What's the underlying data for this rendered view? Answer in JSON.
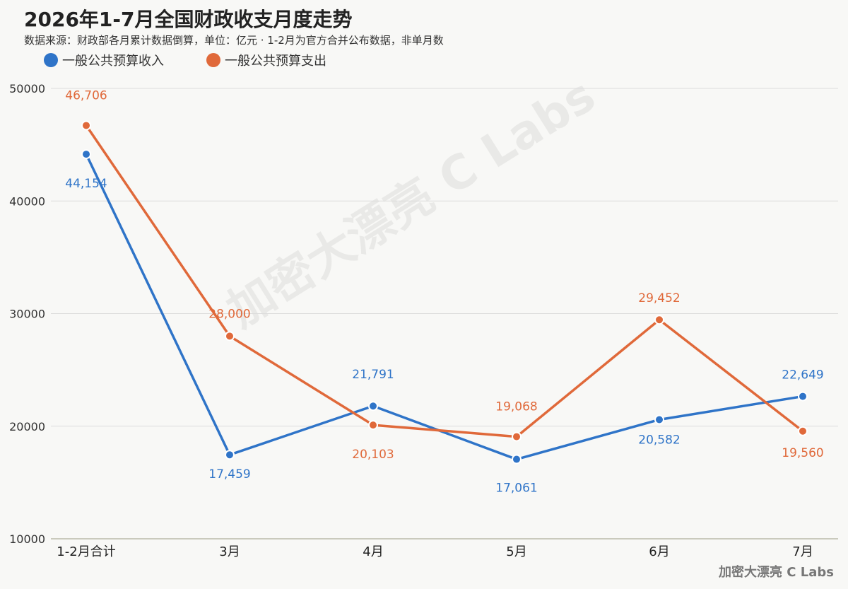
{
  "chart_data": {
    "type": "line",
    "title": "2026年1-7月全国财政收支月度走势",
    "subtitle": "数据来源：财政部各月累计数据倒算，单位：亿元 · 1-2月为官方合并公布数据，非单月数",
    "categories": [
      "1-2月合计",
      "3月",
      "4月",
      "5月",
      "6月",
      "7月"
    ],
    "ylim": [
      10000,
      50000
    ],
    "yticks": [
      "10000",
      "20000",
      "30000",
      "40000",
      "50000"
    ],
    "ytick_values": [
      10000,
      20000,
      30000,
      40000,
      50000
    ],
    "grid": true,
    "legend_position": "top-left",
    "series": [
      {
        "name": "一般公共预算收入",
        "color": "#2f74c8",
        "values": [
          44154,
          17459,
          21791,
          17061,
          20582,
          22649
        ],
        "labels": [
          "44,154",
          "17,459",
          "21,791",
          "17,061",
          "20,582",
          "22,649"
        ]
      },
      {
        "name": "一般公共预算支出",
        "color": "#e0693a",
        "values": [
          46706,
          28000,
          20103,
          19068,
          29452,
          19560
        ],
        "labels": [
          "46,706",
          "28,000",
          "20,103",
          "19,068",
          "29,452",
          "19,560"
        ]
      }
    ]
  },
  "watermark": "加密大漂亮 C Labs",
  "brand": "加密大漂亮 C Labs"
}
